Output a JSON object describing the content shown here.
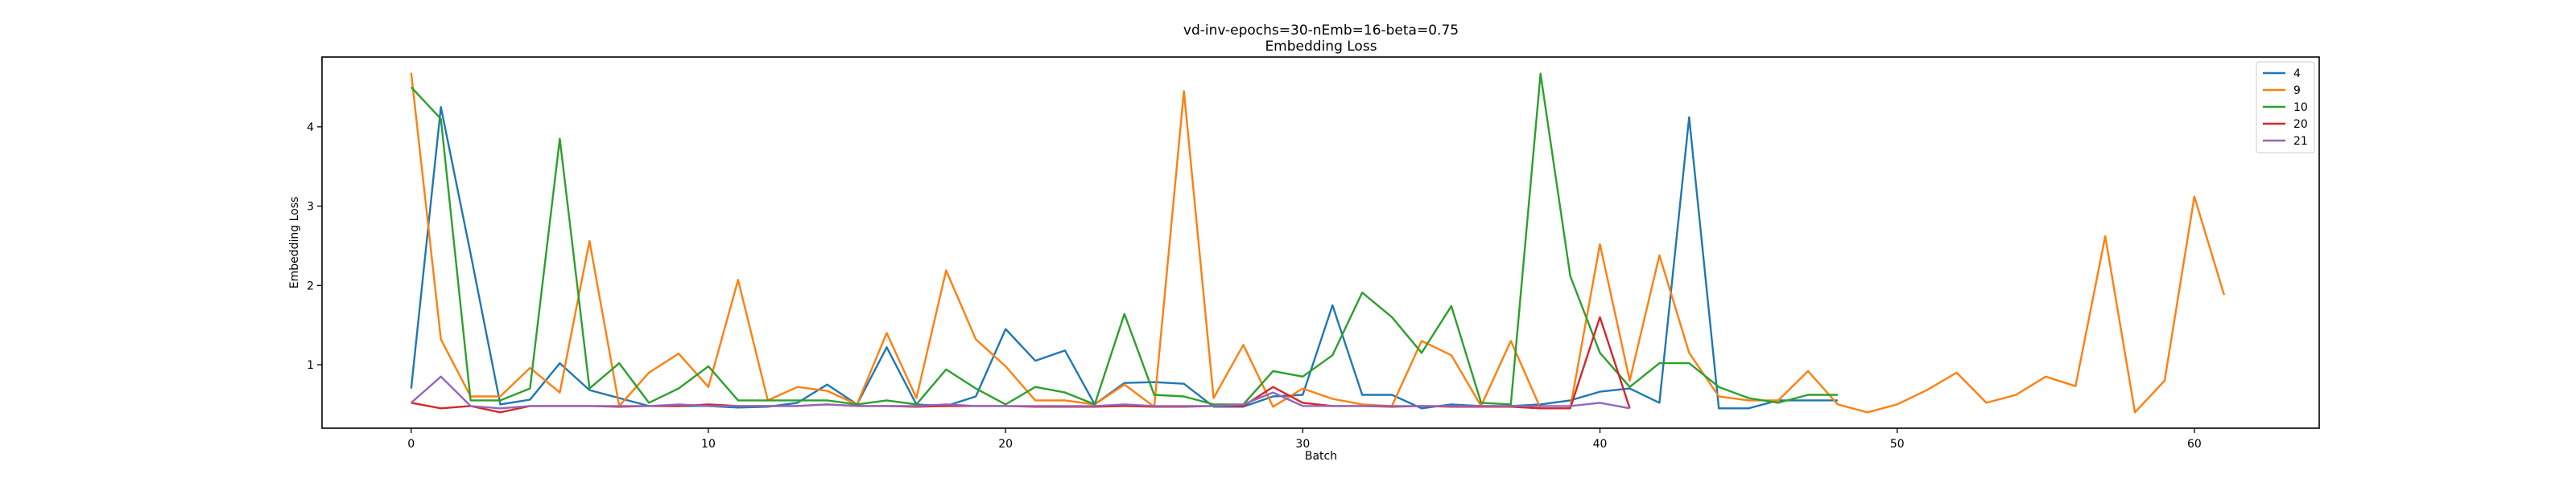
{
  "chart_data": {
    "type": "line",
    "title": "vd-inv-epochs=30-nEmb=16-beta=0.75",
    "subtitle": "Embedding Loss",
    "xlabel": "Batch",
    "ylabel": "Embedding Loss",
    "xlim": [
      -3,
      64.2
    ],
    "ylim": [
      0.2,
      4.88
    ],
    "xticks": [
      0,
      10,
      20,
      30,
      40,
      50,
      60
    ],
    "yticks": [
      1,
      2,
      3,
      4
    ],
    "grid": false,
    "legend_position": "top-right",
    "series": [
      {
        "name": "4",
        "color": "#1f77b4",
        "x_start": 0,
        "values": [
          0.7,
          4.25,
          2.4,
          0.5,
          0.56,
          1.02,
          0.68,
          0.58,
          0.48,
          0.48,
          0.48,
          0.46,
          0.47,
          0.52,
          0.75,
          0.5,
          1.22,
          0.5,
          0.48,
          0.6,
          1.45,
          1.05,
          1.18,
          0.5,
          0.77,
          0.78,
          0.76,
          0.47,
          0.47,
          0.6,
          0.62,
          1.75,
          0.62,
          0.62,
          0.45,
          0.5,
          0.48,
          0.48,
          0.5,
          0.55,
          0.66,
          0.7,
          0.52,
          4.12,
          0.45,
          0.45,
          0.55,
          0.55,
          0.55
        ]
      },
      {
        "name": "9",
        "color": "#ff7f0e",
        "x_start": 0,
        "values": [
          4.68,
          1.32,
          0.6,
          0.6,
          0.96,
          0.65,
          2.56,
          0.48,
          0.9,
          1.14,
          0.72,
          2.07,
          0.55,
          0.72,
          0.67,
          0.5,
          1.4,
          0.58,
          2.19,
          1.32,
          0.98,
          0.55,
          0.55,
          0.5,
          0.75,
          0.47,
          4.45,
          0.58,
          1.25,
          0.47,
          0.7,
          0.57,
          0.5,
          0.48,
          1.3,
          1.12,
          0.48,
          1.3,
          0.45,
          0.45,
          2.52,
          0.8,
          2.38,
          1.15,
          0.6,
          0.55,
          0.55,
          0.92,
          0.5,
          0.4,
          0.5,
          0.68,
          0.9,
          0.52,
          0.62,
          0.85,
          0.73,
          2.62,
          0.4,
          0.8,
          3.12,
          1.88
        ]
      },
      {
        "name": "10",
        "color": "#2ca02c",
        "x_start": 0,
        "values": [
          4.5,
          4.1,
          0.55,
          0.55,
          0.7,
          3.85,
          0.7,
          1.02,
          0.52,
          0.7,
          0.98,
          0.55,
          0.55,
          0.55,
          0.55,
          0.5,
          0.55,
          0.5,
          0.94,
          0.7,
          0.5,
          0.72,
          0.65,
          0.5,
          1.64,
          0.62,
          0.6,
          0.5,
          0.5,
          0.92,
          0.85,
          1.12,
          1.91,
          1.6,
          1.15,
          1.74,
          0.52,
          0.5,
          4.67,
          2.12,
          1.15,
          0.72,
          1.02,
          1.02,
          0.72,
          0.58,
          0.52,
          0.62,
          0.62
        ]
      },
      {
        "name": "20",
        "color": "#d62728",
        "x_start": 0,
        "values": [
          0.52,
          0.45,
          0.48,
          0.4,
          0.48,
          0.48,
          0.48,
          0.47,
          0.48,
          0.48,
          0.5,
          0.48,
          0.48,
          0.48,
          0.5,
          0.48,
          0.48,
          0.47,
          0.48,
          0.48,
          0.48,
          0.47,
          0.47,
          0.47,
          0.48,
          0.47,
          0.47,
          0.48,
          0.48,
          0.72,
          0.52,
          0.48,
          0.48,
          0.47,
          0.48,
          0.47,
          0.47,
          0.47,
          0.45,
          0.45,
          1.6,
          0.45
        ]
      },
      {
        "name": "21",
        "color": "#9467bd",
        "x_start": 0,
        "values": [
          0.52,
          0.85,
          0.48,
          0.45,
          0.48,
          0.48,
          0.48,
          0.48,
          0.48,
          0.5,
          0.48,
          0.48,
          0.48,
          0.48,
          0.5,
          0.48,
          0.48,
          0.48,
          0.5,
          0.48,
          0.48,
          0.48,
          0.48,
          0.48,
          0.5,
          0.48,
          0.48,
          0.48,
          0.5,
          0.65,
          0.48,
          0.48,
          0.48,
          0.48,
          0.48,
          0.48,
          0.48,
          0.48,
          0.48,
          0.48,
          0.52,
          0.45
        ]
      }
    ]
  }
}
